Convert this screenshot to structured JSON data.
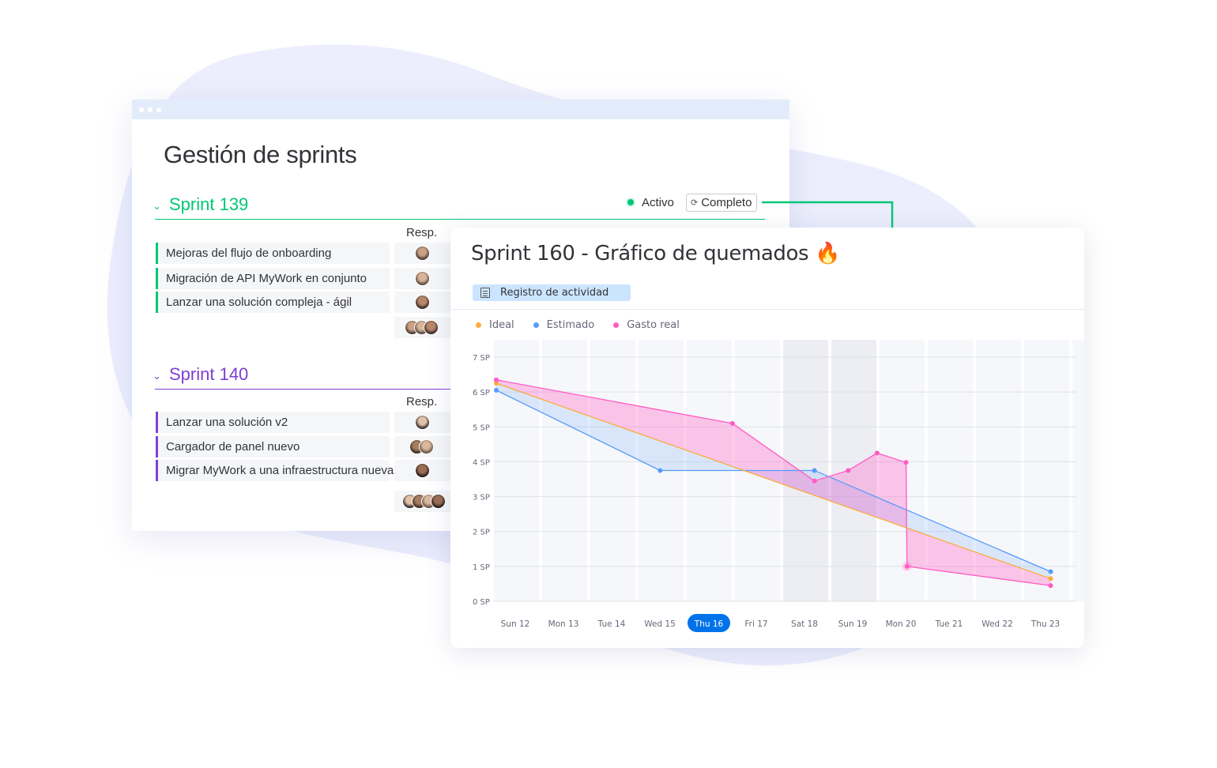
{
  "colors": {
    "background_blob": "#eceefd",
    "sprint139": "#00c875",
    "sprint140": "#7e3fd3",
    "connector": "#00c875",
    "ideal": "#fdab3d",
    "estimated": "#579bfc",
    "actual": "#ff5ac4",
    "highlight_pill": "#0073ea"
  },
  "sprints_window": {
    "title": "Gestión de sprints",
    "status_active": "Activo",
    "status_complete": "Completo",
    "groups": [
      {
        "name": "Sprint 139",
        "color": "#00c875",
        "resp_header": "Resp.",
        "items": [
          {
            "label": "Mejoras del flujo de onboarding",
            "avatars": 1
          },
          {
            "label": " Migración de API MyWork en conjunto",
            "avatars": 1
          },
          {
            "label": "Lanzar una solución compleja - ágil",
            "avatars": 1
          }
        ],
        "summary_avatars": 3
      },
      {
        "name": "Sprint 140",
        "color": "#7e3fd3",
        "resp_header": "Resp.",
        "items": [
          {
            "label": "Lanzar una solución v2",
            "avatars": 1
          },
          {
            "label": "Cargador de panel nuevo",
            "avatars": 2
          },
          {
            "label": "Migrar MyWork a una infraestructura nueva",
            "avatars": 1
          }
        ],
        "summary_avatars": 4
      }
    ]
  },
  "burndown": {
    "title": "Sprint 160 - Gráfico de quemados",
    "title_emoji": "🔥",
    "tab_label": "Registro de actividad",
    "tab_icon": "document-icon"
  },
  "chart_data": {
    "type": "line",
    "title": "Sprint 160 - Gráfico de quemados",
    "categories": [
      "Sun 12",
      "Mon 13",
      "Tue 14",
      "Wed 15",
      "Thu 16",
      "Fri 17",
      "Sat 18",
      "Sun 19",
      "Mon 20",
      "Tue 21",
      "Wed 22",
      "Thu 23"
    ],
    "selected_category": "Thu 16",
    "weekend_shaded": [
      "Sat 18",
      "Sun 19"
    ],
    "y_ticks": [
      "0 SP",
      "1 SP",
      "2 SP",
      "3 SP",
      "4 SP",
      "5 SP",
      "6 SP",
      "7 SP"
    ],
    "ylim": [
      0,
      7
    ],
    "legend_position": "top-left",
    "grid": true,
    "series": [
      {
        "name": "Ideal",
        "color": "#fdab3d",
        "points": [
          [
            0,
            6.25
          ],
          [
            11.5,
            0.65
          ]
        ]
      },
      {
        "name": "Estimado",
        "color": "#579bfc",
        "points": [
          [
            0,
            6.05
          ],
          [
            3.4,
            3.75
          ],
          [
            6.6,
            3.75
          ],
          [
            11.5,
            0.85
          ]
        ]
      },
      {
        "name": "Gasto real",
        "color": "#ff5ac4",
        "points": [
          [
            0,
            6.35
          ],
          [
            4.9,
            5.1
          ],
          [
            6.6,
            3.45
          ],
          [
            7.3,
            3.75
          ],
          [
            7.9,
            4.25
          ],
          [
            8.5,
            3.98
          ],
          [
            8.52,
            1.0
          ],
          [
            11.5,
            0.45
          ]
        ]
      }
    ]
  }
}
